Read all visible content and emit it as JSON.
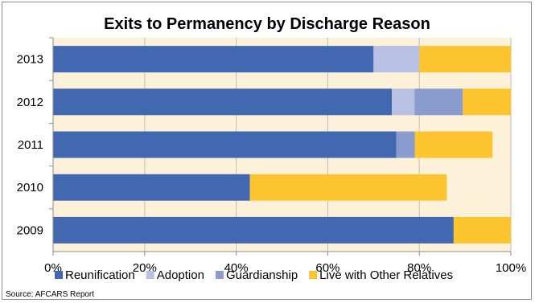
{
  "chart_data": {
    "type": "bar",
    "orientation": "horizontal",
    "stacked": true,
    "title": "Exits to Permanency by Discharge Reason",
    "categories": [
      "2013",
      "2012",
      "2011",
      "2010",
      "2009"
    ],
    "series": [
      {
        "name": "Reunification",
        "color": "#4268b1",
        "values": [
          70,
          74,
          75,
          43,
          87.5
        ]
      },
      {
        "name": "Adoption",
        "color": "#b8c1e3",
        "values": [
          10,
          5,
          0,
          0,
          0
        ]
      },
      {
        "name": "Guardianship",
        "color": "#8a9bd0",
        "values": [
          0,
          10.5,
          4,
          0,
          0
        ]
      },
      {
        "name": "Live with Other Relatives",
        "color": "#fcc52f",
        "values": [
          20,
          10.5,
          17,
          43,
          12.5
        ]
      }
    ],
    "xlim": [
      0,
      100
    ],
    "xticks": [
      "0%",
      "20%",
      "40%",
      "60%",
      "80%",
      "100%"
    ],
    "grid": true,
    "legend_position": "bottom",
    "plot_background": "#fdf2d9",
    "source": "Source: AFCARS Report"
  }
}
